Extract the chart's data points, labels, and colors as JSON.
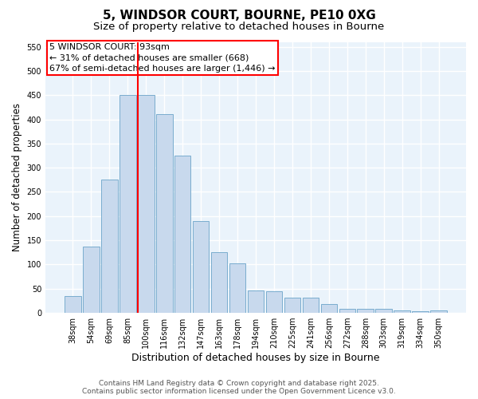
{
  "title": "5, WINDSOR COURT, BOURNE, PE10 0XG",
  "subtitle": "Size of property relative to detached houses in Bourne",
  "xlabel": "Distribution of detached houses by size in Bourne",
  "ylabel": "Number of detached properties",
  "categories": [
    "38sqm",
    "54sqm",
    "69sqm",
    "85sqm",
    "100sqm",
    "116sqm",
    "132sqm",
    "147sqm",
    "163sqm",
    "178sqm",
    "194sqm",
    "210sqm",
    "225sqm",
    "241sqm",
    "256sqm",
    "272sqm",
    "288sqm",
    "303sqm",
    "319sqm",
    "334sqm",
    "350sqm"
  ],
  "values": [
    35,
    137,
    275,
    450,
    450,
    410,
    325,
    190,
    125,
    103,
    46,
    44,
    31,
    31,
    19,
    9,
    9,
    8,
    5,
    4,
    5
  ],
  "bar_color": "#c8d9ed",
  "bar_edge_color": "#7aadce",
  "vline_color": "red",
  "vline_x": 3.55,
  "annotation_line1": "5 WINDSOR COURT: 93sqm",
  "annotation_line2": "← 31% of detached houses are smaller (668)",
  "annotation_line3": "67% of semi-detached houses are larger (1,446) →",
  "ylim": [
    0,
    560
  ],
  "yticks": [
    0,
    50,
    100,
    150,
    200,
    250,
    300,
    350,
    400,
    450,
    500,
    550
  ],
  "fig_background_color": "#ffffff",
  "plot_background_color": "#eaf3fb",
  "grid_color": "#ffffff",
  "footer_line1": "Contains HM Land Registry data © Crown copyright and database right 2025.",
  "footer_line2": "Contains public sector information licensed under the Open Government Licence v3.0.",
  "title_fontsize": 11,
  "subtitle_fontsize": 9.5,
  "tick_fontsize": 7,
  "ylabel_fontsize": 8.5,
  "xlabel_fontsize": 9,
  "annotation_fontsize": 8,
  "footer_fontsize": 6.5
}
